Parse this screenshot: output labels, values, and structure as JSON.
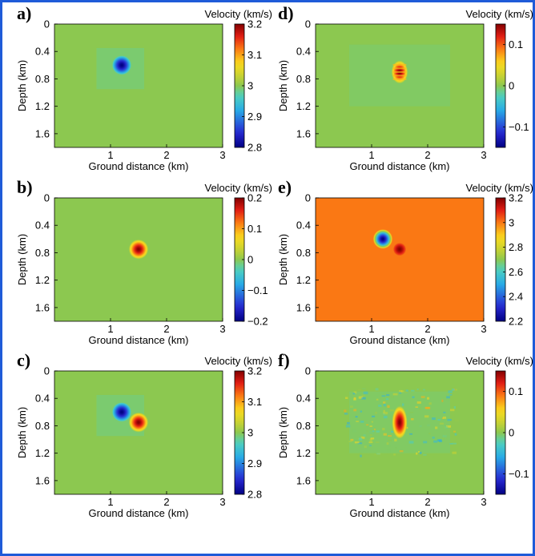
{
  "figure": {
    "frame_color": "#1f5bd8"
  },
  "chart_data": [
    {
      "type": "heatmap",
      "panel": "a)",
      "colorbar_title": "Velocity (km/s)",
      "xlabel": "Ground distance (km)",
      "ylabel": "Depth (km)",
      "xlim": [
        0,
        3
      ],
      "ylim": [
        0,
        1.8
      ],
      "x_ticks": [
        "1",
        "2",
        "3"
      ],
      "y_ticks": [
        "0",
        "0.4",
        "0.8",
        "1.2",
        "1.6"
      ],
      "colorbar_range": [
        2.8,
        3.2
      ],
      "colorbar_ticks": [
        "3.2",
        "3.1",
        "3",
        "2.9",
        "2.8"
      ],
      "background_value": 3.0,
      "features": [
        {
          "kind": "anomaly",
          "x": 1.2,
          "y": 0.6,
          "radius": 0.18,
          "value": 2.8
        }
      ]
    },
    {
      "type": "heatmap",
      "panel": "b)",
      "colorbar_title": "Velocity (km/s)",
      "xlabel": "Ground distance (km)",
      "ylabel": "Depth (km)",
      "xlim": [
        0,
        3
      ],
      "ylim": [
        0,
        1.8
      ],
      "x_ticks": [
        "1",
        "2",
        "3"
      ],
      "y_ticks": [
        "0",
        "0.4",
        "0.8",
        "1.2",
        "1.6"
      ],
      "colorbar_range": [
        -0.2,
        0.2
      ],
      "colorbar_ticks": [
        "0.2",
        "0.1",
        "0",
        "−0.1",
        "−0.2"
      ],
      "background_value": 0,
      "features": [
        {
          "kind": "anomaly",
          "x": 1.5,
          "y": 0.75,
          "radius": 0.18,
          "value": 0.2
        }
      ]
    },
    {
      "type": "heatmap",
      "panel": "c)",
      "colorbar_title": "Velocity (km/s)",
      "xlabel": "Ground distance (km)",
      "ylabel": "Depth (km)",
      "xlim": [
        0,
        3
      ],
      "ylim": [
        0,
        1.8
      ],
      "x_ticks": [
        "1",
        "2",
        "3"
      ],
      "y_ticks": [
        "0",
        "0.4",
        "0.8",
        "1.2",
        "1.6"
      ],
      "colorbar_range": [
        2.8,
        3.2
      ],
      "colorbar_ticks": [
        "3.2",
        "3.1",
        "3",
        "2.9",
        "2.8"
      ],
      "background_value": 3.0,
      "features": [
        {
          "kind": "anomaly",
          "x": 1.2,
          "y": 0.6,
          "radius": 0.18,
          "value": 2.8
        },
        {
          "kind": "anomaly",
          "x": 1.5,
          "y": 0.75,
          "radius": 0.18,
          "value": 3.2
        }
      ]
    },
    {
      "type": "heatmap",
      "panel": "d)",
      "colorbar_title": "Velocity (km/s)",
      "xlabel": "Ground distance (km)",
      "ylabel": "Depth (km)",
      "xlim": [
        0,
        3
      ],
      "ylim": [
        0,
        1.8
      ],
      "x_ticks": [
        "1",
        "2",
        "3"
      ],
      "y_ticks": [
        "0",
        "0.4",
        "0.8",
        "1.2",
        "1.6"
      ],
      "colorbar_range": [
        -0.15,
        0.15
      ],
      "colorbar_ticks": [
        "0.1",
        "0",
        "−0.1"
      ],
      "colorbar_tick_values": [
        0.1,
        0,
        -0.1
      ],
      "background_value": 0,
      "features": [
        {
          "kind": "banded-anomaly",
          "x": 1.5,
          "y": 0.7,
          "radius": 0.2,
          "value": 0.15
        }
      ]
    },
    {
      "type": "heatmap",
      "panel": "e)",
      "colorbar_title": "Velocity (km/s)",
      "xlabel": "Ground distance (km)",
      "ylabel": "Depth (km)",
      "xlim": [
        0,
        3
      ],
      "ylim": [
        0,
        1.8
      ],
      "x_ticks": [
        "1",
        "2",
        "3"
      ],
      "y_ticks": [
        "0",
        "0.4",
        "0.8",
        "1.2",
        "1.6"
      ],
      "colorbar_range": [
        2.2,
        3.2
      ],
      "colorbar_ticks": [
        "3.2",
        "3",
        "2.8",
        "2.6",
        "2.4",
        "2.2"
      ],
      "background_value": 3.0,
      "features": [
        {
          "kind": "anomaly",
          "x": 1.2,
          "y": 0.6,
          "radius": 0.18,
          "value": 2.2
        },
        {
          "kind": "anomaly",
          "x": 1.5,
          "y": 0.75,
          "radius": 0.12,
          "value": 3.2
        }
      ]
    },
    {
      "type": "heatmap",
      "panel": "f)",
      "colorbar_title": "Velocity (km/s)",
      "xlabel": "Ground distance (km)",
      "ylabel": "Depth (km)",
      "xlim": [
        0,
        3
      ],
      "ylim": [
        0,
        1.8
      ],
      "x_ticks": [
        "1",
        "2",
        "3"
      ],
      "y_ticks": [
        "0",
        "0.4",
        "0.8",
        "1.2",
        "1.6"
      ],
      "colorbar_range": [
        -0.15,
        0.15
      ],
      "colorbar_ticks": [
        "0.1",
        "0",
        "−0.1"
      ],
      "colorbar_tick_values": [
        0.1,
        0,
        -0.1
      ],
      "background_value": 0,
      "features": [
        {
          "kind": "noisy-anomaly",
          "x": 1.5,
          "y": 0.75,
          "radius": 0.2,
          "value": 0.15
        }
      ]
    }
  ]
}
